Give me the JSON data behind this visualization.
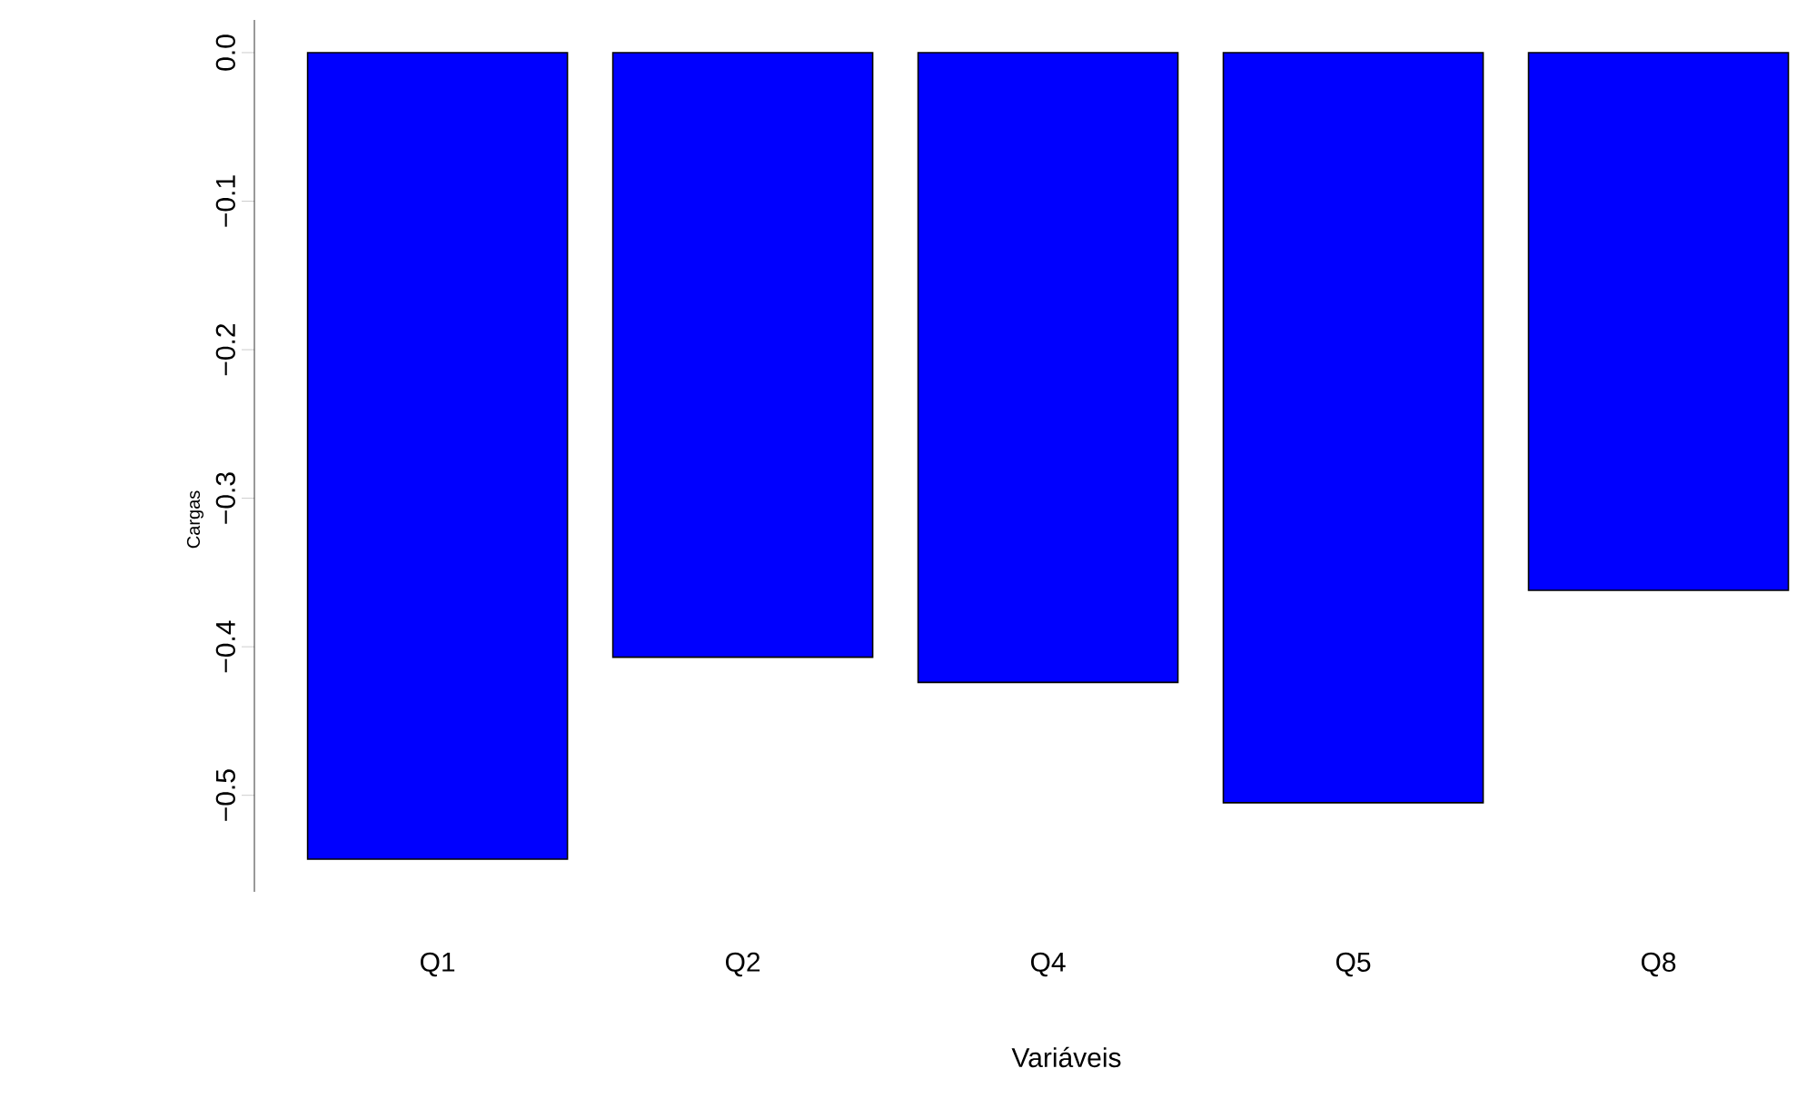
{
  "chart_data": {
    "type": "bar",
    "xlabel": "Variáveis",
    "ylabel": "Cargas",
    "categories": [
      "Q1",
      "Q2",
      "Q4",
      "Q5",
      "Q8"
    ],
    "values": [
      -0.543,
      -0.407,
      -0.424,
      -0.505,
      -0.362
    ],
    "color": "#0000ff",
    "ylim": [
      -0.565,
      0.022
    ],
    "yticks": [
      {
        "value": 0,
        "label": "0.0"
      },
      {
        "value": -0.1,
        "label": "−0.1"
      },
      {
        "value": -0.2,
        "label": "−0.2"
      },
      {
        "value": -0.3,
        "label": "−0.3"
      },
      {
        "value": -0.4,
        "label": "−0.4"
      },
      {
        "value": -0.5,
        "label": "−0.5"
      }
    ],
    "grid": false
  }
}
